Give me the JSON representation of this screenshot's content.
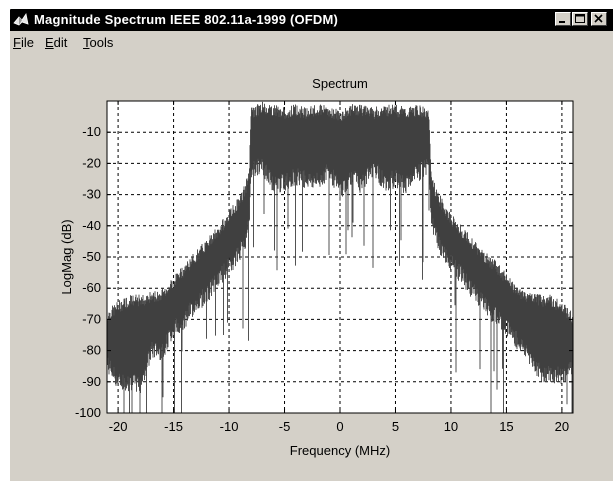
{
  "window": {
    "title": "Magnitude Spectrum IEEE 802.11a-1999 (OFDM)",
    "controls": [
      "minimize",
      "maximize",
      "close"
    ]
  },
  "menu": {
    "items": [
      {
        "label": "File",
        "mnemonic": "F",
        "rest": "ile"
      },
      {
        "label": "Edit",
        "mnemonic": "E",
        "rest": "dit"
      },
      {
        "label": "Tools",
        "mnemonic": "T",
        "rest": "ools"
      }
    ]
  },
  "chart_data": {
    "type": "line",
    "title": "Spectrum",
    "xlabel": "Frequency (MHz)",
    "ylabel": "LogMag (dB)",
    "xlim": [
      -21,
      21
    ],
    "ylim": [
      -100,
      0
    ],
    "xticks": [
      -20,
      -15,
      -10,
      -5,
      0,
      5,
      10,
      15,
      20
    ],
    "yticks": [
      -10,
      -20,
      -30,
      -40,
      -50,
      -60,
      -70,
      -80,
      -90,
      -100
    ],
    "grid": true,
    "series": [
      {
        "color": "#404040",
        "envelope": {
          "x": [
            -21,
            -20,
            -19,
            -18,
            -17,
            -16,
            -15,
            -14,
            -13,
            -12,
            -11,
            -10,
            -9,
            -8.5,
            -8.2,
            -8,
            -7,
            -6,
            -5,
            -4,
            -3,
            -2,
            -1,
            0,
            1,
            2,
            3,
            4,
            5,
            6,
            7,
            8,
            8.2,
            8.5,
            9,
            10,
            11,
            12,
            13,
            14,
            15,
            16,
            17,
            18,
            19,
            20,
            21
          ],
          "upper": [
            -69,
            -66,
            -64,
            -64,
            -63,
            -62,
            -58,
            -54,
            -50,
            -46,
            -42,
            -37,
            -32,
            -28,
            -24,
            -4,
            -2,
            -3,
            -4,
            -3,
            -4,
            -3,
            -3,
            -5,
            -3,
            -3,
            -4,
            -3,
            -3,
            -4,
            -3,
            -4,
            -23,
            -28,
            -32,
            -38,
            -42,
            -46,
            -50,
            -53,
            -57,
            -61,
            -63,
            -64,
            -64,
            -66,
            -70
          ],
          "lower": [
            -84,
            -90,
            -90,
            -91,
            -80,
            -80,
            -73,
            -70,
            -65,
            -62,
            -57,
            -53,
            -48,
            -44,
            -40,
            -22,
            -21,
            -27,
            -26,
            -24,
            -25,
            -26,
            -22,
            -29,
            -24,
            -27,
            -21,
            -26,
            -25,
            -27,
            -23,
            -21,
            -38,
            -42,
            -47,
            -52,
            -56,
            -61,
            -65,
            -69,
            -72,
            -77,
            -81,
            -87,
            -88,
            -88,
            -85
          ]
        }
      }
    ]
  }
}
